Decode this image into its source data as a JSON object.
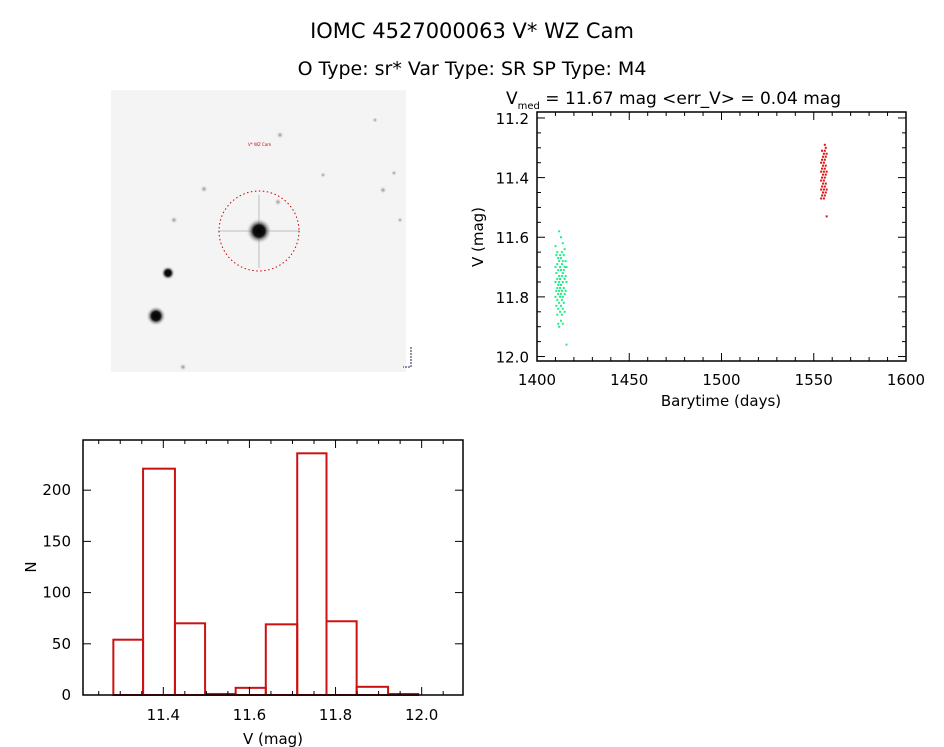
{
  "header": {
    "title": "IOMC 4527000063   V* WZ Cam",
    "subtitle": "O Type: sr*  Var Type: SR  SP Type: M4"
  },
  "sky_image": {
    "target_name": "V* WZ Cam",
    "circle_color": "#cc0000"
  },
  "chart_data": [
    {
      "type": "scatter",
      "title_main": "V",
      "title_sub": "med",
      "title_rest": " = 11.67 mag <err_V> = 0.04 mag",
      "xlabel": "Barytime (days)",
      "ylabel": "V (mag)",
      "xlim": [
        1400,
        1600
      ],
      "ylim": [
        11.18,
        12.015
      ],
      "y_inverted": true,
      "xticks": [
        "1400",
        "1450",
        "1500",
        "1550",
        "1600"
      ],
      "yticks": [
        "11.2",
        "11.4",
        "11.6",
        "11.8",
        "12.0"
      ],
      "series": [
        {
          "color": "#22ee88",
          "points": [
            [
              1410,
              11.63
            ],
            [
              1410,
              11.7
            ],
            [
              1410,
              11.75
            ],
            [
              1410,
              11.8
            ],
            [
              1410.5,
              11.66
            ],
            [
              1410.5,
              11.72
            ],
            [
              1410.5,
              11.78
            ],
            [
              1410.5,
              11.83
            ],
            [
              1411,
              11.65
            ],
            [
              1411,
              11.69
            ],
            [
              1411,
              11.74
            ],
            [
              1411,
              11.77
            ],
            [
              1411,
              11.81
            ],
            [
              1411,
              11.86
            ],
            [
              1411.5,
              11.67
            ],
            [
              1411.5,
              11.71
            ],
            [
              1411.5,
              11.76
            ],
            [
              1411.5,
              11.79
            ],
            [
              1411.5,
              11.84
            ],
            [
              1411.5,
              11.89
            ],
            [
              1412,
              11.58
            ],
            [
              1412,
              11.68
            ],
            [
              1412,
              11.73
            ],
            [
              1412,
              11.75
            ],
            [
              1412,
              11.78
            ],
            [
              1412,
              11.82
            ],
            [
              1412,
              11.9
            ],
            [
              1412.5,
              11.66
            ],
            [
              1412.5,
              11.7
            ],
            [
              1412.5,
              11.74
            ],
            [
              1412.5,
              11.77
            ],
            [
              1412.5,
              11.8
            ],
            [
              1412.5,
              11.85
            ],
            [
              1413,
              11.6
            ],
            [
              1413,
              11.67
            ],
            [
              1413,
              11.71
            ],
            [
              1413,
              11.76
            ],
            [
              1413,
              11.79
            ],
            [
              1413,
              11.83
            ],
            [
              1413,
              11.88
            ],
            [
              1413.5,
              11.65
            ],
            [
              1413.5,
              11.69
            ],
            [
              1413.5,
              11.73
            ],
            [
              1413.5,
              11.78
            ],
            [
              1413.5,
              11.81
            ],
            [
              1413.5,
              11.86
            ],
            [
              1414,
              11.62
            ],
            [
              1414,
              11.68
            ],
            [
              1414,
              11.72
            ],
            [
              1414,
              11.75
            ],
            [
              1414,
              11.8
            ],
            [
              1414,
              11.84
            ],
            [
              1414,
              11.89
            ],
            [
              1414.5,
              11.66
            ],
            [
              1414.5,
              11.71
            ],
            [
              1414.5,
              11.77
            ],
            [
              1414.5,
              11.82
            ],
            [
              1415,
              11.64
            ],
            [
              1415,
              11.7
            ],
            [
              1415,
              11.74
            ],
            [
              1415,
              11.79
            ],
            [
              1415,
              11.85
            ],
            [
              1415.5,
              11.68
            ],
            [
              1415.5,
              11.73
            ],
            [
              1415.5,
              11.78
            ],
            [
              1416,
              11.7
            ],
            [
              1416,
              11.75
            ],
            [
              1416,
              11.96
            ]
          ]
        },
        {
          "color": "#dd1111",
          "points": [
            [
              1554,
              11.35
            ],
            [
              1554,
              11.38
            ],
            [
              1554,
              11.41
            ],
            [
              1554,
              11.44
            ],
            [
              1554,
              11.47
            ],
            [
              1554.5,
              11.31
            ],
            [
              1554.5,
              11.34
            ],
            [
              1554.5,
              11.37
            ],
            [
              1554.5,
              11.4
            ],
            [
              1554.5,
              11.43
            ],
            [
              1554.5,
              11.46
            ],
            [
              1555,
              11.33
            ],
            [
              1555,
              11.36
            ],
            [
              1555,
              11.39
            ],
            [
              1555,
              11.42
            ],
            [
              1555,
              11.45
            ],
            [
              1555.5,
              11.32
            ],
            [
              1555.5,
              11.35
            ],
            [
              1555.5,
              11.38
            ],
            [
              1555.5,
              11.41
            ],
            [
              1555.5,
              11.44
            ],
            [
              1555.5,
              11.47
            ],
            [
              1556,
              11.29
            ],
            [
              1556,
              11.31
            ],
            [
              1556,
              11.34
            ],
            [
              1556,
              11.37
            ],
            [
              1556,
              11.4
            ],
            [
              1556,
              11.43
            ],
            [
              1556,
              11.46
            ],
            [
              1556.5,
              11.3
            ],
            [
              1556.5,
              11.33
            ],
            [
              1556.5,
              11.36
            ],
            [
              1556.5,
              11.39
            ],
            [
              1556.5,
              11.42
            ],
            [
              1556.5,
              11.45
            ],
            [
              1557,
              11.32
            ],
            [
              1557,
              11.38
            ],
            [
              1557,
              11.44
            ],
            [
              1557,
              11.53
            ]
          ]
        }
      ]
    },
    {
      "type": "bar",
      "subtype": "histogram",
      "xlabel": "V (mag)",
      "ylabel": "N",
      "xlim": [
        11.2135,
        12.096
      ],
      "ylim": [
        0,
        249
      ],
      "xticks": [
        "11.4",
        "11.6",
        "11.8",
        "12.0"
      ],
      "yticks": [
        "0",
        "50",
        "100",
        "150",
        "200"
      ],
      "bin_edges": [
        11.284,
        11.353,
        11.427,
        11.497,
        11.568,
        11.638,
        11.711,
        11.779,
        11.849,
        11.922,
        11.992
      ],
      "values": [
        54,
        221,
        70,
        1,
        7,
        69,
        236,
        72,
        8,
        1
      ],
      "color": "#cc1111"
    }
  ]
}
